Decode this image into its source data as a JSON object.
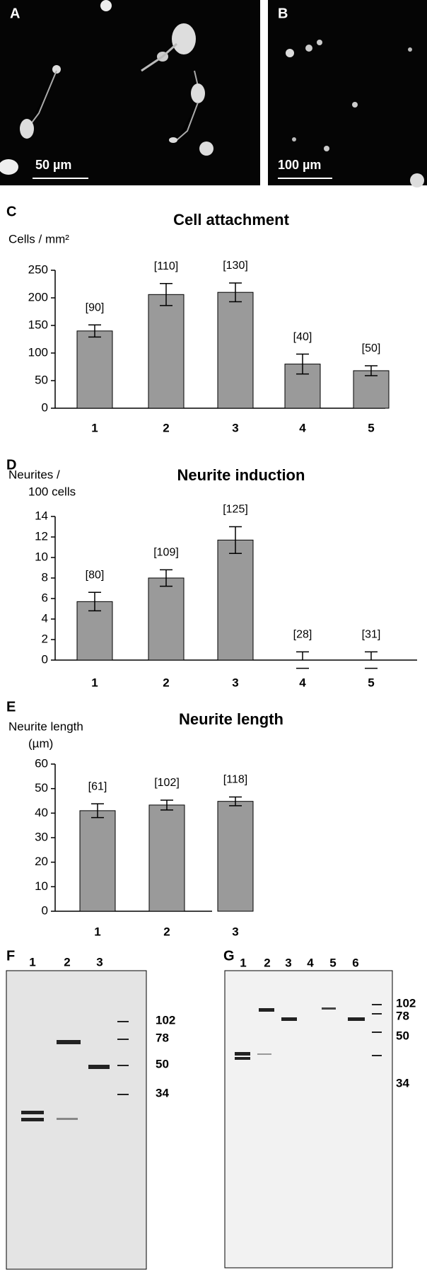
{
  "micrographs": [
    {
      "label": "A",
      "scale": "50 µm"
    },
    {
      "label": "B",
      "scale": "100 µm"
    }
  ],
  "chart_data": [
    {
      "type": "bar",
      "panel": "C",
      "title": "Cell attachment",
      "y_label": [
        "Cells / mm²"
      ],
      "categories": [
        "1",
        "2",
        "3",
        "4",
        "5"
      ],
      "values": [
        140,
        206,
        210,
        80,
        68
      ],
      "errors": [
        11,
        20,
        17,
        18,
        9
      ],
      "n_labels": [
        "[90]",
        "[110]",
        "[130]",
        "[40]",
        "[50]"
      ],
      "color": "#9a9a9a",
      "ylim": [
        0,
        250
      ],
      "yticks": [
        0,
        50,
        100,
        150,
        200,
        250
      ]
    },
    {
      "type": "bar",
      "panel": "D",
      "title": "Neurite induction",
      "y_label": [
        "Neurites /",
        "100 cells"
      ],
      "categories": [
        "1",
        "2",
        "3",
        "4",
        "5"
      ],
      "values": [
        5.7,
        8.0,
        11.7,
        0,
        0
      ],
      "errors": [
        0.9,
        0.8,
        1.3,
        0.8,
        0.8
      ],
      "n_labels": [
        "[80]",
        "[109]",
        "[125]",
        "[28]",
        "[31]"
      ],
      "color": "#9a9a9a",
      "ylim": [
        0,
        14
      ],
      "yticks": [
        0,
        2,
        4,
        6,
        8,
        10,
        12,
        14
      ]
    },
    {
      "type": "bar",
      "panel": "E",
      "title": "Neurite length",
      "y_label": [
        "Neurite length",
        "(µm)"
      ],
      "categories": [
        "1",
        "2",
        "3"
      ],
      "values": [
        41,
        43.3,
        44.8
      ],
      "errors": [
        2.8,
        2,
        1.8
      ],
      "n_labels": [
        "[61]",
        "[102]",
        "[118]"
      ],
      "color": "#9a9a9a",
      "ylim": [
        0,
        60
      ],
      "yticks": [
        0,
        10,
        20,
        30,
        40,
        50,
        60
      ]
    }
  ],
  "gels": [
    {
      "label": "F",
      "lanes": [
        "1",
        "2",
        "3"
      ],
      "markers": [
        "102",
        "78",
        "50",
        "34"
      ]
    },
    {
      "label": "G",
      "lanes": [
        "1",
        "2",
        "3",
        "4",
        "5",
        "6"
      ],
      "markers": [
        "102",
        "78",
        "50",
        "34"
      ]
    }
  ]
}
